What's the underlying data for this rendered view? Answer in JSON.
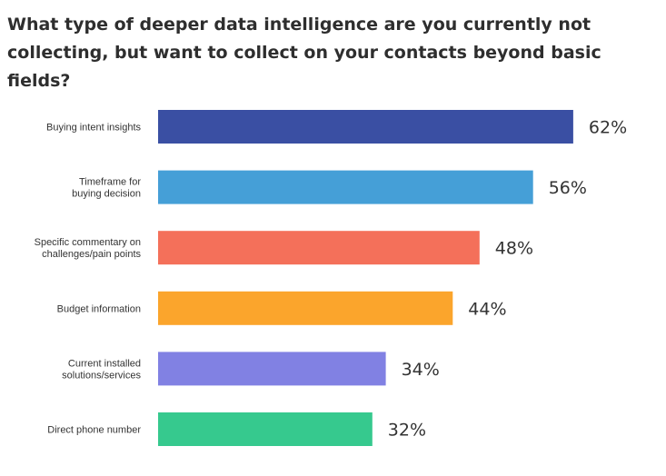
{
  "chart_data": {
    "type": "bar",
    "orientation": "horizontal",
    "title": "What type of deeper data intelligence are you currently not\ncollecting, but want to collect on your contacts beyond basic fields?",
    "categories": [
      [
        "Buying intent insights"
      ],
      [
        "Timeframe for",
        "buying decision"
      ],
      [
        "Specific commentary on",
        "challenges/pain points"
      ],
      [
        "Budget information"
      ],
      [
        "Current installed",
        "solutions/services"
      ],
      [
        "Direct phone number"
      ]
    ],
    "values": [
      62,
      56,
      48,
      44,
      34,
      32
    ],
    "value_labels": [
      "62%",
      "56%",
      "48%",
      "44%",
      "34%",
      "32%"
    ],
    "unit": "%",
    "xlim": [
      0,
      100
    ],
    "colors": [
      "#3a4fa3",
      "#459fd7",
      "#f4705a",
      "#fba52c",
      "#8181e3",
      "#36c98e"
    ],
    "grid": false,
    "legend": "none"
  }
}
